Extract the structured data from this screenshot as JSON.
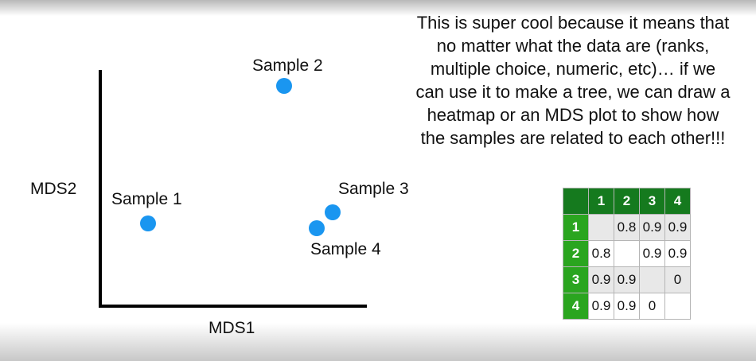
{
  "explanation": [
    "This is super cool because it means that",
    "no matter what the data are (ranks,",
    "multiple choice, numeric, etc)… if we",
    "can use it to make a tree, we can draw a",
    "heatmap or an MDS plot to show how",
    "the samples are related to each other!!!"
  ],
  "plot": {
    "xlabel": "MDS1",
    "ylabel": "MDS2",
    "samples": [
      {
        "label": "Sample 1"
      },
      {
        "label": "Sample 2"
      },
      {
        "label": "Sample 3"
      },
      {
        "label": "Sample 4"
      }
    ],
    "point_color": "#1a96f0"
  },
  "distance_table": {
    "headers": [
      "1",
      "2",
      "3",
      "4"
    ],
    "rows": [
      {
        "label": "1",
        "cells": [
          "",
          "0.8",
          "0.9",
          "0.9"
        ]
      },
      {
        "label": "2",
        "cells": [
          "0.8",
          "",
          "0.9",
          "0.9"
        ]
      },
      {
        "label": "3",
        "cells": [
          "0.9",
          "0.9",
          "",
          "0"
        ]
      },
      {
        "label": "4",
        "cells": [
          "0.9",
          "0.9",
          "0",
          ""
        ]
      }
    ],
    "header_color": "#157a1e",
    "row_header_color": "#2aa51f"
  }
}
